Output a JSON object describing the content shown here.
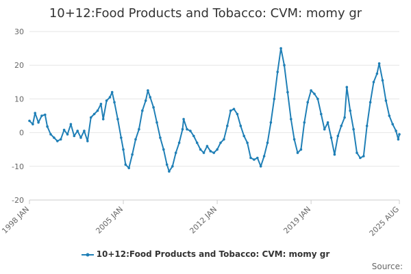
{
  "title": "10+12:Food Products and Tobacco: CVM: momy gr",
  "legend_label": "10+12:Food Products and Tobacco: CVM: momy gr",
  "source_label": "Source:",
  "colors": {
    "series": "#1f7fb6",
    "grid": "#e6e6e6",
    "axis_text": "#666666"
  },
  "chart_data": {
    "type": "line",
    "title": "10+12:Food Products and Tobacco: CVM: momy gr",
    "x_tick_labels": [
      "1998 JAN",
      "2005 JAN",
      "2012 JAN",
      "2019 JAN",
      "2025 AUG"
    ],
    "y_ticks": [
      -20,
      -10,
      0,
      10,
      20,
      30
    ],
    "ylim": [
      -20,
      30
    ],
    "xlim": [
      "1998-01",
      "2025-08"
    ],
    "grid": true,
    "legend_position": "bottom",
    "series": [
      {
        "name": "10+12:Food Products and Tobacco: CVM: momy gr",
        "points": [
          [
            "1998-01",
            3.5
          ],
          [
            "1998-04",
            2.5
          ],
          [
            "1998-06",
            5.8
          ],
          [
            "1998-09",
            3.0
          ],
          [
            "1998-12",
            5.0
          ],
          [
            "1999-03",
            5.3
          ],
          [
            "1999-05",
            1.8
          ],
          [
            "1999-08",
            -0.5
          ],
          [
            "1999-11",
            -1.5
          ],
          [
            "2000-02",
            -2.5
          ],
          [
            "2000-05",
            -2.0
          ],
          [
            "2000-08",
            0.8
          ],
          [
            "2000-11",
            -0.5
          ],
          [
            "2001-02",
            2.5
          ],
          [
            "2001-05",
            -1.0
          ],
          [
            "2001-08",
            0.5
          ],
          [
            "2001-11",
            -1.5
          ],
          [
            "2002-02",
            0.5
          ],
          [
            "2002-05",
            -2.5
          ],
          [
            "2002-08",
            4.5
          ],
          [
            "2002-11",
            5.5
          ],
          [
            "2003-02",
            6.5
          ],
          [
            "2003-05",
            8.5
          ],
          [
            "2003-07",
            4.0
          ],
          [
            "2003-10",
            9.5
          ],
          [
            "2004-01",
            10.5
          ],
          [
            "2004-03",
            12.0
          ],
          [
            "2004-05",
            9.0
          ],
          [
            "2004-08",
            4.0
          ],
          [
            "2004-11",
            -1.5
          ],
          [
            "2005-01",
            -5.0
          ],
          [
            "2005-03",
            -9.5
          ],
          [
            "2005-06",
            -10.5
          ],
          [
            "2005-09",
            -6.5
          ],
          [
            "2005-12",
            -2.0
          ],
          [
            "2006-03",
            1.0
          ],
          [
            "2006-06",
            6.5
          ],
          [
            "2006-09",
            9.5
          ],
          [
            "2006-11",
            12.5
          ],
          [
            "2007-01",
            10.5
          ],
          [
            "2007-04",
            7.5
          ],
          [
            "2007-07",
            3.0
          ],
          [
            "2007-10",
            -1.5
          ],
          [
            "2008-01",
            -5.0
          ],
          [
            "2008-04",
            -9.5
          ],
          [
            "2008-06",
            -11.5
          ],
          [
            "2008-09",
            -10.0
          ],
          [
            "2008-12",
            -6.0
          ],
          [
            "2009-03",
            -3.0
          ],
          [
            "2009-06",
            1.0
          ],
          [
            "2009-07",
            4.0
          ],
          [
            "2009-10",
            1.0
          ],
          [
            "2010-01",
            0.5
          ],
          [
            "2010-04",
            -1.0
          ],
          [
            "2010-07",
            -3.0
          ],
          [
            "2010-10",
            -5.0
          ],
          [
            "2011-01",
            -6.0
          ],
          [
            "2011-04",
            -4.0
          ],
          [
            "2011-07",
            -5.5
          ],
          [
            "2011-10",
            -6.0
          ],
          [
            "2012-01",
            -5.0
          ],
          [
            "2012-04",
            -3.0
          ],
          [
            "2012-07",
            -2.0
          ],
          [
            "2012-10",
            2.0
          ],
          [
            "2013-01",
            6.5
          ],
          [
            "2013-04",
            7.0
          ],
          [
            "2013-07",
            5.5
          ],
          [
            "2013-10",
            2.0
          ],
          [
            "2014-01",
            -1.0
          ],
          [
            "2014-04",
            -3.0
          ],
          [
            "2014-07",
            -7.5
          ],
          [
            "2014-10",
            -8.0
          ],
          [
            "2015-01",
            -7.5
          ],
          [
            "2015-04",
            -10.0
          ],
          [
            "2015-07",
            -7.0
          ],
          [
            "2015-10",
            -3.0
          ],
          [
            "2016-01",
            3.0
          ],
          [
            "2016-04",
            10.0
          ],
          [
            "2016-07",
            18.0
          ],
          [
            "2016-10",
            25.0
          ],
          [
            "2017-01",
            20.0
          ],
          [
            "2017-04",
            12.0
          ],
          [
            "2017-07",
            4.0
          ],
          [
            "2017-10",
            -2.0
          ],
          [
            "2018-01",
            -6.0
          ],
          [
            "2018-04",
            -5.0
          ],
          [
            "2018-07",
            3.0
          ],
          [
            "2018-10",
            9.0
          ],
          [
            "2019-01",
            12.5
          ],
          [
            "2019-04",
            11.5
          ],
          [
            "2019-07",
            10.0
          ],
          [
            "2019-10",
            5.5
          ],
          [
            "2020-01",
            1.0
          ],
          [
            "2020-04",
            3.0
          ],
          [
            "2020-07",
            -1.5
          ],
          [
            "2020-10",
            -6.5
          ],
          [
            "2021-01",
            -1.0
          ],
          [
            "2021-04",
            2.0
          ],
          [
            "2021-07",
            4.5
          ],
          [
            "2021-09",
            13.5
          ],
          [
            "2021-12",
            6.5
          ],
          [
            "2022-03",
            1.0
          ],
          [
            "2022-06",
            -6.0
          ],
          [
            "2022-09",
            -7.5
          ],
          [
            "2022-12",
            -7.0
          ],
          [
            "2023-03",
            2.0
          ],
          [
            "2023-06",
            9.0
          ],
          [
            "2023-09",
            15.0
          ],
          [
            "2023-12",
            17.5
          ],
          [
            "2024-02",
            20.5
          ],
          [
            "2024-05",
            15.5
          ],
          [
            "2024-08",
            9.5
          ],
          [
            "2024-11",
            5.0
          ],
          [
            "2025-02",
            2.5
          ],
          [
            "2025-05",
            0.5
          ],
          [
            "2025-07",
            -2.0
          ],
          [
            "2025-08",
            -0.5
          ]
        ]
      }
    ]
  }
}
